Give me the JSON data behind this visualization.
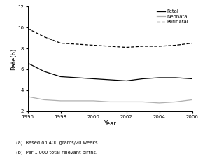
{
  "years": [
    1996,
    1997,
    1998,
    1999,
    2000,
    2001,
    2002,
    2003,
    2004,
    2005,
    2006
  ],
  "fetal": [
    6.6,
    5.8,
    5.3,
    5.2,
    5.1,
    5.0,
    4.9,
    5.1,
    5.2,
    5.2,
    5.1
  ],
  "neonatal": [
    3.4,
    3.1,
    3.0,
    3.0,
    3.0,
    2.9,
    2.9,
    2.9,
    2.8,
    2.9,
    3.1
  ],
  "perinatal": [
    9.9,
    9.1,
    8.5,
    8.4,
    8.3,
    8.2,
    8.1,
    8.2,
    8.2,
    8.3,
    8.5
  ],
  "fetal_color": "#000000",
  "neonatal_color": "#b0b0b0",
  "perinatal_color": "#000000",
  "xlabel": "Year",
  "ylabel": "Rate(b)",
  "ylim": [
    2,
    12
  ],
  "yticks": [
    2,
    4,
    6,
    8,
    10,
    12
  ],
  "xticks": [
    1996,
    1998,
    2000,
    2002,
    2004,
    2006
  ],
  "note1": "(a)  Based on 400 grams/20 weeks.",
  "note2": "(b)  Per 1,000 total relevant births.",
  "legend_labels": [
    "Fetal",
    "Neonatal",
    "Perinatal"
  ],
  "background_color": "#ffffff"
}
